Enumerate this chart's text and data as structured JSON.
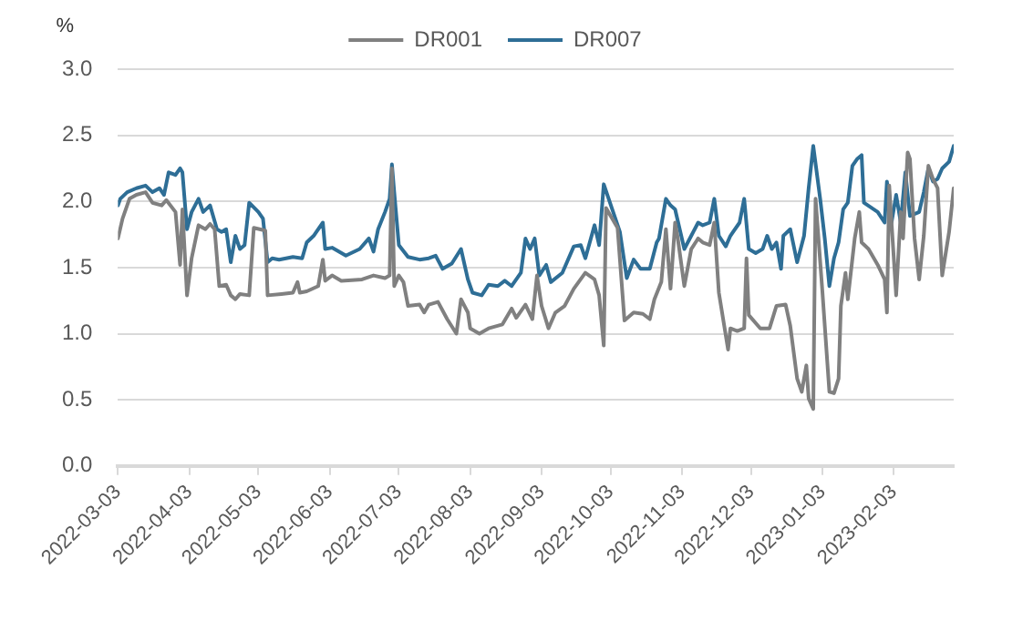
{
  "chart_data": {
    "type": "line",
    "ylabel": "%",
    "legend": "top",
    "grid": "y",
    "marker": "none",
    "line_style": "solid",
    "xlim": [
      "2022-03-03",
      "2023-03-01"
    ],
    "xticks": [
      "2022-03-03",
      "2022-04-03",
      "2022-05-03",
      "2022-06-03",
      "2022-07-03",
      "2022-08-03",
      "2022-09-03",
      "2022-10-03",
      "2022-11-03",
      "2022-12-03",
      "2023-01-03",
      "2023-02-03"
    ],
    "ylim": [
      0,
      3
    ],
    "yticks": [
      {
        "value": 0,
        "label": "0.0"
      },
      {
        "value": 0.5,
        "label": "0.5"
      },
      {
        "value": 1,
        "label": "1.0"
      },
      {
        "value": 1.5,
        "label": "1.5"
      },
      {
        "value": 2,
        "label": "2.0"
      },
      {
        "value": 2.5,
        "label": "2.5"
      },
      {
        "value": 3,
        "label": "3.0"
      }
    ],
    "series": [
      {
        "name": "DR001",
        "color": "#808080",
        "x": [
          "2022-03-03",
          "2022-03-05",
          "2022-03-08",
          "2022-03-11",
          "2022-03-15",
          "2022-03-18",
          "2022-03-22",
          "2022-03-24",
          "2022-03-28",
          "2022-03-30",
          "2022-03-31",
          "2022-04-02",
          "2022-04-04",
          "2022-04-07",
          "2022-04-10",
          "2022-04-12",
          "2022-04-14",
          "2022-04-16",
          "2022-04-19",
          "2022-04-21",
          "2022-04-23",
          "2022-04-25",
          "2022-04-29",
          "2022-05-01",
          "2022-05-06",
          "2022-05-07",
          "2022-05-13",
          "2022-05-18",
          "2022-05-20",
          "2022-05-21",
          "2022-05-24",
          "2022-05-29",
          "2022-05-31",
          "2022-06-01",
          "2022-06-04",
          "2022-06-08",
          "2022-06-17",
          "2022-06-22",
          "2022-06-27",
          "2022-06-29",
          "2022-06-30",
          "2022-07-01",
          "2022-07-03",
          "2022-07-05",
          "2022-07-07",
          "2022-07-12",
          "2022-07-14",
          "2022-07-16",
          "2022-07-20",
          "2022-07-24",
          "2022-07-28",
          "2022-07-30",
          "2022-08-02",
          "2022-08-03",
          "2022-08-07",
          "2022-08-11",
          "2022-08-17",
          "2022-08-21",
          "2022-08-23",
          "2022-08-27",
          "2022-08-30",
          "2022-09-01",
          "2022-09-03",
          "2022-09-06",
          "2022-09-09",
          "2022-09-13",
          "2022-09-17",
          "2022-09-22",
          "2022-09-26",
          "2022-09-28",
          "2022-09-30",
          "2022-10-01",
          "2022-10-06",
          "2022-10-09",
          "2022-10-13",
          "2022-10-17",
          "2022-10-20",
          "2022-10-22",
          "2022-10-25",
          "2022-10-27",
          "2022-10-29",
          "2022-10-31",
          "2022-11-01",
          "2022-11-04",
          "2022-11-07",
          "2022-11-10",
          "2022-11-12",
          "2022-11-15",
          "2022-11-17",
          "2022-11-19",
          "2022-11-23",
          "2022-11-24",
          "2022-11-27",
          "2022-11-30",
          "2022-12-01",
          "2022-12-02",
          "2022-12-07",
          "2022-12-11",
          "2022-12-14",
          "2022-12-18",
          "2022-12-20",
          "2022-12-23",
          "2022-12-25",
          "2022-12-27",
          "2022-12-28",
          "2022-12-30",
          "2022-12-31",
          "2023-01-03",
          "2023-01-06",
          "2023-01-08",
          "2023-01-10",
          "2023-01-11",
          "2023-01-13",
          "2023-01-14",
          "2023-01-17",
          "2023-01-19",
          "2023-01-20",
          "2023-01-23",
          "2023-01-27",
          "2023-01-30",
          "2023-01-31",
          "2023-02-01",
          "2023-02-02",
          "2023-02-04",
          "2023-02-06",
          "2023-02-07",
          "2023-02-09",
          "2023-02-10",
          "2023-02-12",
          "2023-02-14",
          "2023-02-16",
          "2023-02-18",
          "2023-02-20",
          "2023-02-22",
          "2023-02-24",
          "2023-02-27",
          "2023-03-01"
        ],
        "values": [
          1.72,
          1.87,
          2.02,
          2.05,
          2.07,
          1.99,
          1.97,
          2.01,
          1.92,
          1.52,
          1.94,
          1.29,
          1.57,
          1.82,
          1.79,
          1.83,
          1.79,
          1.36,
          1.37,
          1.29,
          1.26,
          1.3,
          1.29,
          1.8,
          1.78,
          1.29,
          1.3,
          1.31,
          1.39,
          1.31,
          1.32,
          1.36,
          1.56,
          1.4,
          1.44,
          1.4,
          1.41,
          1.44,
          1.42,
          1.44,
          2.25,
          1.36,
          1.44,
          1.39,
          1.21,
          1.22,
          1.16,
          1.22,
          1.24,
          1.11,
          1.0,
          1.26,
          1.16,
          1.04,
          1.0,
          1.04,
          1.07,
          1.19,
          1.12,
          1.22,
          1.11,
          1.44,
          1.21,
          1.04,
          1.16,
          1.21,
          1.34,
          1.46,
          1.41,
          1.29,
          0.91,
          1.95,
          1.8,
          1.1,
          1.16,
          1.15,
          1.11,
          1.26,
          1.39,
          1.79,
          1.34,
          1.84,
          1.74,
          1.36,
          1.64,
          1.72,
          1.69,
          1.67,
          1.84,
          1.31,
          0.88,
          1.04,
          1.02,
          1.04,
          1.57,
          1.14,
          1.04,
          1.04,
          1.21,
          1.22,
          1.06,
          0.66,
          0.56,
          0.76,
          0.51,
          0.43,
          2.02,
          1.31,
          0.56,
          0.55,
          0.66,
          1.21,
          1.46,
          1.26,
          1.72,
          1.92,
          1.69,
          1.64,
          1.52,
          1.41,
          1.16,
          2.12,
          1.84,
          1.29,
          1.92,
          1.72,
          2.37,
          2.32,
          1.72,
          1.41,
          1.74,
          2.27,
          2.17,
          2.1,
          1.44,
          1.77,
          2.1
        ]
      },
      {
        "name": "DR007",
        "color": "#2e6e96",
        "x": [
          "2022-03-03",
          "2022-03-04",
          "2022-03-07",
          "2022-03-11",
          "2022-03-15",
          "2022-03-18",
          "2022-03-21",
          "2022-03-23",
          "2022-03-25",
          "2022-03-28",
          "2022-03-30",
          "2022-03-31",
          "2022-04-02",
          "2022-04-04",
          "2022-04-07",
          "2022-04-09",
          "2022-04-12",
          "2022-04-15",
          "2022-04-17",
          "2022-04-19",
          "2022-04-21",
          "2022-04-23",
          "2022-04-25",
          "2022-04-27",
          "2022-04-29",
          "2022-05-03",
          "2022-05-05",
          "2022-05-07",
          "2022-05-09",
          "2022-05-12",
          "2022-05-18",
          "2022-05-22",
          "2022-05-24",
          "2022-05-27",
          "2022-05-31",
          "2022-06-01",
          "2022-06-04",
          "2022-06-10",
          "2022-06-16",
          "2022-06-20",
          "2022-06-22",
          "2022-06-24",
          "2022-06-27",
          "2022-06-29",
          "2022-06-30",
          "2022-07-01",
          "2022-07-03",
          "2022-07-07",
          "2022-07-12",
          "2022-07-16",
          "2022-07-19",
          "2022-07-22",
          "2022-07-26",
          "2022-07-30",
          "2022-08-02",
          "2022-08-04",
          "2022-08-08",
          "2022-08-11",
          "2022-08-15",
          "2022-08-18",
          "2022-08-21",
          "2022-08-25",
          "2022-08-27",
          "2022-08-29",
          "2022-08-31",
          "2022-09-02",
          "2022-09-05",
          "2022-09-07",
          "2022-09-12",
          "2022-09-17",
          "2022-09-20",
          "2022-09-22",
          "2022-09-26",
          "2022-09-28",
          "2022-09-30",
          "2022-10-07",
          "2022-10-10",
          "2022-10-13",
          "2022-10-16",
          "2022-10-20",
          "2022-10-23",
          "2022-10-24",
          "2022-10-27",
          "2022-10-29",
          "2022-10-31",
          "2022-11-04",
          "2022-11-07",
          "2022-11-10",
          "2022-11-12",
          "2022-11-15",
          "2022-11-17",
          "2022-11-19",
          "2022-11-22",
          "2022-11-24",
          "2022-11-28",
          "2022-11-30",
          "2022-12-02",
          "2022-12-05",
          "2022-12-08",
          "2022-12-10",
          "2022-12-12",
          "2022-12-14",
          "2022-12-16",
          "2022-12-17",
          "2022-12-20",
          "2022-12-23",
          "2022-12-26",
          "2022-12-28",
          "2022-12-30",
          "2023-01-02",
          "2023-01-04",
          "2023-01-06",
          "2023-01-08",
          "2023-01-10",
          "2023-01-12",
          "2023-01-14",
          "2023-01-16",
          "2023-01-18",
          "2023-01-20",
          "2023-01-21",
          "2023-01-27",
          "2023-01-30",
          "2023-01-31",
          "2023-02-02",
          "2023-02-04",
          "2023-02-06",
          "2023-02-08",
          "2023-02-10",
          "2023-02-14",
          "2023-02-16",
          "2023-02-18",
          "2023-02-20",
          "2023-02-22",
          "2023-02-24",
          "2023-02-27",
          "2023-03-01"
        ],
        "values": [
          1.97,
          2.02,
          2.07,
          2.1,
          2.12,
          2.07,
          2.1,
          2.05,
          2.22,
          2.2,
          2.25,
          2.22,
          1.79,
          1.92,
          2.02,
          1.92,
          1.97,
          1.79,
          1.77,
          1.79,
          1.54,
          1.74,
          1.64,
          1.67,
          1.99,
          1.92,
          1.87,
          1.54,
          1.57,
          1.56,
          1.58,
          1.57,
          1.69,
          1.74,
          1.84,
          1.64,
          1.65,
          1.59,
          1.64,
          1.72,
          1.62,
          1.79,
          1.92,
          2.02,
          2.28,
          2.07,
          1.67,
          1.58,
          1.56,
          1.57,
          1.59,
          1.49,
          1.53,
          1.64,
          1.41,
          1.31,
          1.29,
          1.37,
          1.36,
          1.4,
          1.36,
          1.46,
          1.72,
          1.64,
          1.72,
          1.44,
          1.52,
          1.39,
          1.46,
          1.66,
          1.67,
          1.57,
          1.82,
          1.67,
          2.13,
          1.77,
          1.42,
          1.56,
          1.49,
          1.49,
          1.69,
          1.72,
          2.02,
          1.97,
          1.94,
          1.64,
          1.74,
          1.84,
          1.82,
          1.84,
          2.02,
          1.74,
          1.66,
          1.74,
          1.84,
          2.02,
          1.64,
          1.61,
          1.64,
          1.74,
          1.64,
          1.69,
          1.49,
          1.74,
          1.79,
          1.54,
          1.74,
          2.1,
          2.42,
          2.02,
          1.72,
          1.36,
          1.57,
          1.69,
          1.94,
          1.99,
          2.27,
          2.32,
          2.35,
          1.99,
          1.92,
          1.84,
          2.15,
          1.84,
          2.05,
          1.84,
          2.22,
          1.89,
          1.92,
          2.07,
          2.25,
          2.15,
          2.17,
          2.25,
          2.3,
          2.42
        ]
      }
    ]
  }
}
